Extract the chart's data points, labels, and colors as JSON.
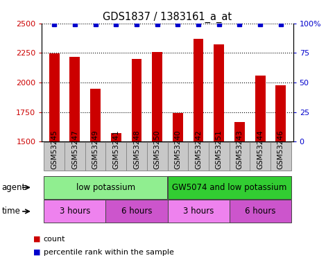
{
  "title": "GDS1837 / 1383161_a_at",
  "categories": [
    "GSM53245",
    "GSM53247",
    "GSM53249",
    "GSM53241",
    "GSM53248",
    "GSM53250",
    "GSM53240",
    "GSM53242",
    "GSM53251",
    "GSM53243",
    "GSM53244",
    "GSM53246"
  ],
  "bar_values": [
    2248,
    2215,
    1950,
    1575,
    2200,
    2260,
    1745,
    2370,
    2320,
    1665,
    2060,
    1975
  ],
  "percentile_values": [
    99,
    99,
    99,
    99,
    99,
    99,
    99,
    99,
    99,
    99,
    99,
    99
  ],
  "bar_color": "#cc0000",
  "percentile_color": "#0000cc",
  "ylim_left": [
    1500,
    2500
  ],
  "ylim_right": [
    0,
    100
  ],
  "yticks_left": [
    1500,
    1750,
    2000,
    2250,
    2500
  ],
  "yticks_right": [
    0,
    25,
    50,
    75,
    100
  ],
  "agent_groups": [
    {
      "label": "low potassium",
      "start": 0,
      "end": 6,
      "color": "#90ee90"
    },
    {
      "label": "GW5074 and low potassium",
      "start": 6,
      "end": 12,
      "color": "#32cd32"
    }
  ],
  "time_groups": [
    {
      "label": "3 hours",
      "start": 0,
      "end": 3,
      "color": "#ee82ee"
    },
    {
      "label": "6 hours",
      "start": 3,
      "end": 6,
      "color": "#cc55cc"
    },
    {
      "label": "3 hours",
      "start": 6,
      "end": 9,
      "color": "#ee82ee"
    },
    {
      "label": "6 hours",
      "start": 9,
      "end": 12,
      "color": "#cc55cc"
    }
  ],
  "legend_count_color": "#cc0000",
  "legend_percentile_color": "#0000cc",
  "background_color": "#ffffff",
  "bar_width": 0.5,
  "tick_label_bg": "#c8c8c8",
  "tick_label_fontsize": 7.5,
  "row_label_agent": "agent",
  "row_label_time": "time"
}
